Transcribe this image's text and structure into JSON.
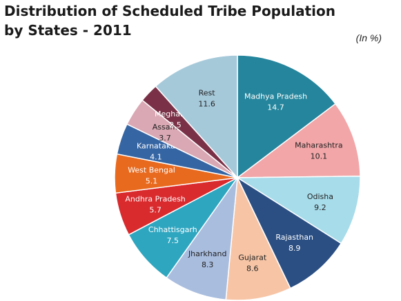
{
  "header": {
    "title_line1": "Distribution of Scheduled Tribe Population",
    "title_line2": "by States - 2011",
    "units": "(In %)"
  },
  "chart_data": {
    "type": "pie",
    "title": "Distribution of Scheduled Tribe Population by States - 2011",
    "unit": "(In %)",
    "start": "12 o'clock",
    "direction": "clockwise",
    "slices": [
      {
        "label": "Madhya Pradesh",
        "value": 14.7,
        "color": "#24859c"
      },
      {
        "label": "Maharashtra",
        "value": 10.1,
        "color": "#f2a6a8"
      },
      {
        "label": "Odisha",
        "value": 9.2,
        "color": "#a7dcea"
      },
      {
        "label": "Rajasthan",
        "value": 8.9,
        "color": "#2b4f83"
      },
      {
        "label": "Gujarat",
        "value": 8.6,
        "color": "#f7c5a6"
      },
      {
        "label": "Jharkhand",
        "value": 8.3,
        "color": "#a9bddf"
      },
      {
        "label": "Chhattisgarh",
        "value": 7.5,
        "color": "#2ea6c0"
      },
      {
        "label": "Andhra Pradesh",
        "value": 5.7,
        "color": "#d92a2e"
      },
      {
        "label": "West Bengal",
        "value": 5.1,
        "color": "#e86a1f"
      },
      {
        "label": "Karnataka",
        "value": 4.1,
        "color": "#3565a3"
      },
      {
        "label": "Assam",
        "value": 3.7,
        "color": "#d9a8b4"
      },
      {
        "label": "Meghalaya",
        "value": 2.5,
        "color": "#7a3147"
      },
      {
        "label": "Rest",
        "value": 11.6,
        "color": "#a6c9da"
      }
    ]
  }
}
